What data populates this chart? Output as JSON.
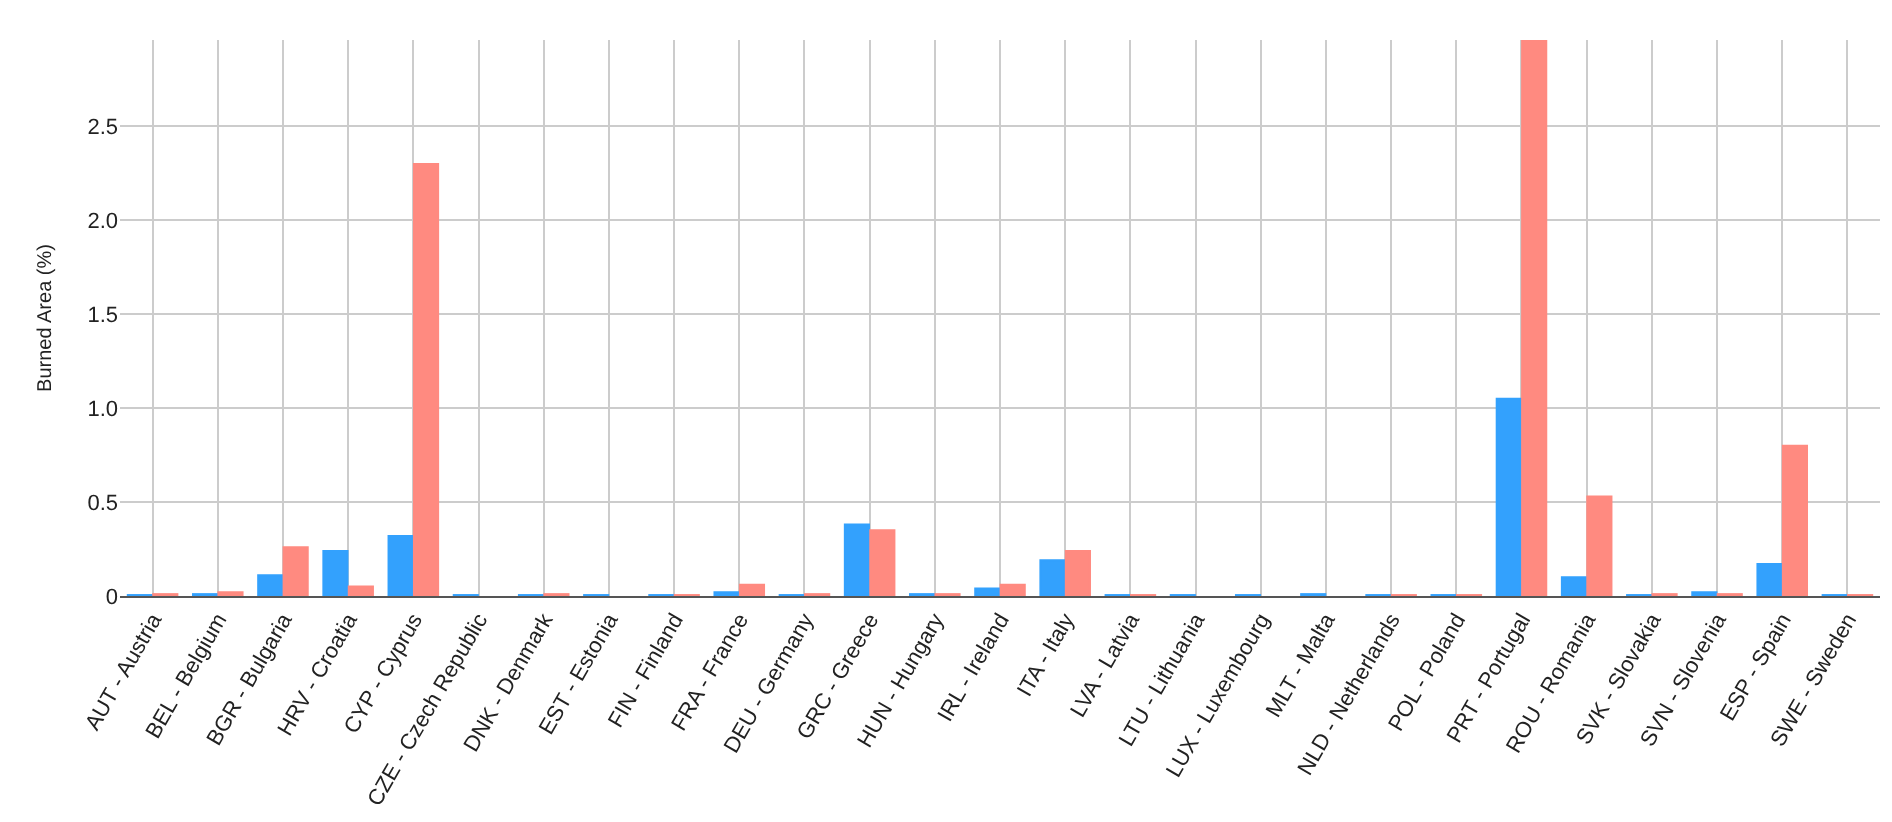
{
  "chart_data": {
    "type": "bar",
    "ylabel": "Burned Area (%)",
    "categories": [
      "AUT - Austria",
      "BEL - Belgium",
      "BGR - Bulgaria",
      "HRV - Croatia",
      "CYP - Cyprus",
      "CZE - Czech Republic",
      "DNK - Denmark",
      "EST - Estonia",
      "FIN - Finland",
      "FRA - France",
      "DEU - Germany",
      "GRC - Greece",
      "HUN - Hungary",
      "IRL - Ireland",
      "ITA - Italy",
      "LVA - Latvia",
      "LTU - Lithuania",
      "LUX - Luxembourg",
      "MLT - Malta",
      "NLD - Netherlands",
      "POL - Poland",
      "PRT - Portugal",
      "ROU - Romania",
      "SVK - Slovakia",
      "SVN - Slovenia",
      "ESP - Spain",
      "SWE - Sweden"
    ],
    "series": [
      {
        "color": "#33a1fd",
        "values": [
          0.005,
          0.01,
          0.11,
          0.24,
          0.32,
          0.005,
          0.005,
          0.005,
          0.005,
          0.02,
          0.005,
          0.38,
          0.01,
          0.04,
          0.19,
          0.005,
          0.005,
          0.005,
          0.01,
          0.005,
          0.005,
          1.05,
          0.1,
          0.005,
          0.02,
          0.17,
          0.005
        ]
      },
      {
        "color": "#ff8a80",
        "values": [
          0.01,
          0.02,
          0.26,
          0.05,
          2.3,
          null,
          0.01,
          null,
          0.005,
          0.06,
          0.01,
          0.35,
          0.01,
          0.06,
          0.24,
          0.005,
          null,
          null,
          null,
          0.005,
          0.005,
          2.96,
          0.53,
          0.01,
          0.01,
          0.8,
          0.005
        ]
      }
    ],
    "ylim": [
      0,
      2.96
    ],
    "yticks": [
      0,
      0.5,
      {
        "value": 1,
        "label": "1.0"
      },
      1.5,
      {
        "value": 2,
        "label": "2.0"
      },
      2.5
    ],
    "grid": true,
    "legend": false
  }
}
